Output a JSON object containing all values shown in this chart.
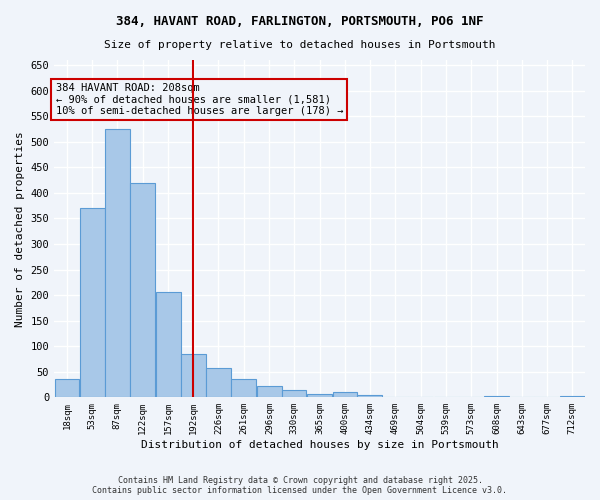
{
  "title1": "384, HAVANT ROAD, FARLINGTON, PORTSMOUTH, PO6 1NF",
  "title2": "Size of property relative to detached houses in Portsmouth",
  "xlabel": "Distribution of detached houses by size in Portsmouth",
  "ylabel": "Number of detached properties",
  "bar_color": "#a8c8e8",
  "bar_edge_color": "#5b9bd5",
  "vline_color": "#cc0000",
  "vline_x": 208,
  "annotation_text": "384 HAVANT ROAD: 208sqm\n← 90% of detached houses are smaller (1,581)\n10% of semi-detached houses are larger (178) →",
  "annotation_box_color": "#cc0000",
  "bins": [
    18,
    53,
    87,
    122,
    157,
    192,
    226,
    261,
    296,
    330,
    365,
    400,
    434,
    469,
    504,
    539,
    573,
    608,
    643,
    677,
    712
  ],
  "bar_heights": [
    35,
    370,
    525,
    420,
    207,
    84,
    57,
    36,
    22,
    15,
    7,
    10,
    4,
    0,
    0,
    0,
    0,
    3,
    0,
    0,
    3
  ],
  "ylim": [
    0,
    660
  ],
  "yticks": [
    0,
    50,
    100,
    150,
    200,
    250,
    300,
    350,
    400,
    450,
    500,
    550,
    600,
    650
  ],
  "footer_text": "Contains HM Land Registry data © Crown copyright and database right 2025.\nContains public sector information licensed under the Open Government Licence v3.0.",
  "background_color": "#f0f4fa",
  "grid_color": "#ffffff"
}
